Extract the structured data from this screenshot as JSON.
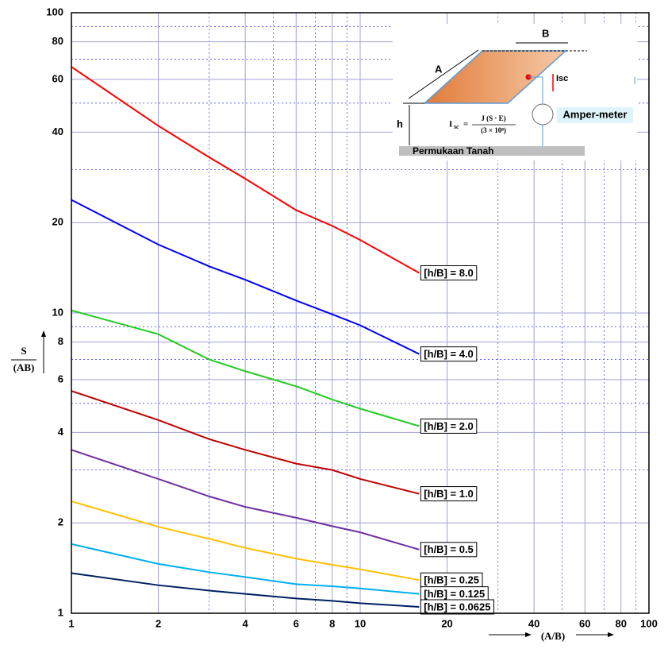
{
  "chart_data": {
    "type": "line",
    "x_label": "(A/B)",
    "y_label_top": "S",
    "y_label_bottom": "(AB)",
    "x": [
      1,
      2,
      3,
      4,
      6,
      8,
      10,
      16
    ],
    "series": [
      {
        "name": "[h/B] = 8.0",
        "color": "#ff0000",
        "values": [
          66,
          42,
          33,
          28,
          22,
          19.5,
          17.5,
          13.6
        ]
      },
      {
        "name": "[h/B] = 4.0",
        "color": "#0000ff",
        "values": [
          23.8,
          16.9,
          14.3,
          12.9,
          11,
          9.9,
          9.1,
          7.3
        ]
      },
      {
        "name": "[h/B] = 2.0",
        "color": "#22cc22",
        "values": [
          10.2,
          8.5,
          7,
          6.4,
          5.7,
          5.15,
          4.8,
          4.2
        ]
      },
      {
        "name": "[h/B] = 1.0",
        "color": "#c00000",
        "values": [
          5.5,
          4.4,
          3.8,
          3.5,
          3.15,
          3,
          2.8,
          2.5
        ]
      },
      {
        "name": "[h/B] = 0.5",
        "color": "#7030a0",
        "values": [
          3.5,
          2.8,
          2.45,
          2.26,
          2.08,
          1.95,
          1.86,
          1.63
        ]
      },
      {
        "name": "[h/B] = 0.25",
        "color": "#ffc000",
        "values": [
          2.36,
          1.94,
          1.77,
          1.65,
          1.52,
          1.45,
          1.4,
          1.29
        ]
      },
      {
        "name": "[h/B] = 0.125",
        "color": "#00b0f0",
        "values": [
          1.7,
          1.46,
          1.37,
          1.32,
          1.25,
          1.23,
          1.21,
          1.16
        ]
      },
      {
        "name": "[h/B] = 0.0625",
        "color": "#002060",
        "values": [
          1.36,
          1.24,
          1.19,
          1.16,
          1.12,
          1.1,
          1.08,
          1.05
        ]
      }
    ],
    "log_x": true,
    "log_y": true,
    "xlim": [
      1,
      100
    ],
    "ylim": [
      1,
      100
    ],
    "xticks": [
      1,
      2,
      4,
      6,
      8,
      10,
      20,
      40,
      60,
      80,
      100
    ],
    "yticks": [
      1,
      2,
      4,
      6,
      8,
      10,
      20,
      40,
      60,
      80,
      100
    ],
    "xminor": [
      3,
      5,
      7,
      9,
      30,
      50,
      70,
      90
    ],
    "yminor": [
      3,
      5,
      7,
      9,
      30,
      50,
      70,
      90
    ],
    "grid": true
  },
  "inset": {
    "a": "A",
    "b": "B",
    "h": "h",
    "isc": "Isc",
    "meter": "Amper-meter",
    "ground": "Permukaan Tanah",
    "formula": {
      "lhs": "I",
      "sub": "sc",
      "eq": "=",
      "numerator": "J (S · E)",
      "denominator": "(3 × 10⁸)"
    }
  }
}
